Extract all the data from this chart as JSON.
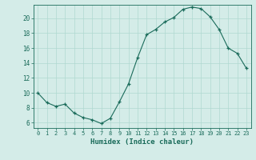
{
  "x": [
    0,
    1,
    2,
    3,
    4,
    5,
    6,
    7,
    8,
    9,
    10,
    11,
    12,
    13,
    14,
    15,
    16,
    17,
    18,
    19,
    20,
    21,
    22,
    23
  ],
  "y": [
    10.0,
    8.7,
    8.2,
    8.5,
    7.3,
    6.7,
    6.4,
    5.9,
    6.6,
    8.8,
    11.2,
    14.7,
    17.8,
    18.5,
    19.5,
    20.1,
    21.2,
    21.5,
    21.3,
    20.2,
    18.5,
    16.0,
    15.3,
    13.3
  ],
  "xlim": [
    -0.5,
    23.5
  ],
  "ylim": [
    5.3,
    21.8
  ],
  "yticks": [
    6,
    8,
    10,
    12,
    14,
    16,
    18,
    20
  ],
  "xticks": [
    0,
    1,
    2,
    3,
    4,
    5,
    6,
    7,
    8,
    9,
    10,
    11,
    12,
    13,
    14,
    15,
    16,
    17,
    18,
    19,
    20,
    21,
    22,
    23
  ],
  "xlabel": "Humidex (Indice chaleur)",
  "line_color": "#1a6b5a",
  "marker": "+",
  "bg_color": "#d4ece8",
  "grid_color": "#b0d8d0",
  "axis_color": "#1a6b5a",
  "tick_color": "#1a6b5a",
  "label_color": "#1a6b5a"
}
